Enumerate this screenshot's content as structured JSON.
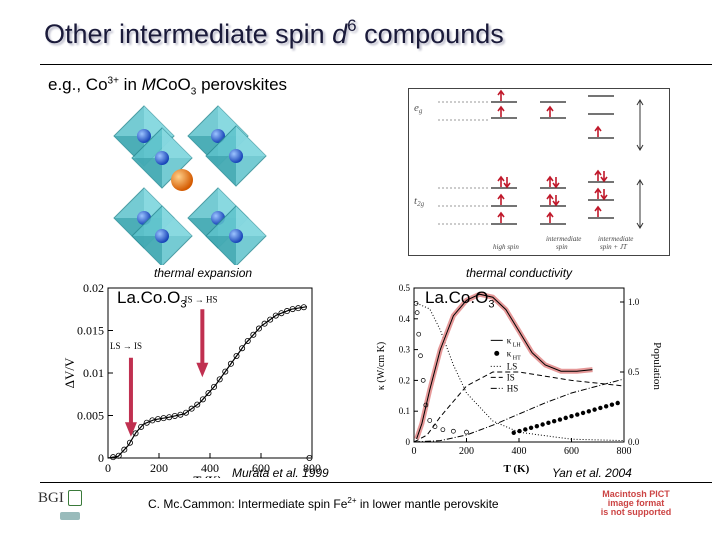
{
  "slide": {
    "title_pre": "Other intermediate spin ",
    "title_d": "d",
    "title_sup": "6",
    "title_post": " compounds",
    "subtitle_pre": "e.g., Co",
    "subtitle_sup": "3+",
    "subtitle_mid": " in ",
    "subtitle_m": "M",
    "subtitle_co": "CoO",
    "subtitle_sub": "3",
    "subtitle_post": " perovskites"
  },
  "energy_diagram": {
    "eg_label": "e",
    "eg_sub": "g",
    "t2g_label": "t",
    "t2g_sub": "2g",
    "col1": "high spin",
    "col2_l1": "intermediate",
    "col2_l2": "spin",
    "col3_l1": "intermediate",
    "col3_l2": "spin + JT"
  },
  "left_chart": {
    "caption": "thermal expansion",
    "material": "La.Co.O",
    "material_sub": "3",
    "ylabel": "ΔV/V",
    "xlabel": "T (K)",
    "yticks": [
      "0.02",
      "0.015",
      "0.01",
      "0.005",
      "0"
    ],
    "xticks": [
      "0",
      "200",
      "400",
      "600",
      "800"
    ],
    "ann_ls": "LS → IS",
    "ann_is": "IS → HS",
    "credit": "Murata et al. 1999"
  },
  "right_chart": {
    "caption": "thermal conductivity",
    "material": "La.Co.O",
    "material_sub": "3",
    "ylabel": "κ (W/cm K)",
    "y2label": "Population",
    "xlabel": "T (K)",
    "yticks": [
      "0.5",
      "0.4",
      "0.3",
      "0.2",
      "0.1",
      "0"
    ],
    "y2ticks": [
      "1.0",
      "0.5",
      "0.0"
    ],
    "xticks": [
      "0",
      "200",
      "400",
      "600",
      "800"
    ],
    "legend": [
      "κ",
      "κ",
      "LS",
      "IS",
      "HS"
    ],
    "legend_sub": [
      "LH",
      "HT"
    ],
    "credit": "Yan et al. 2004"
  },
  "footer": {
    "text_pre": "C. Mc.Cammon: Intermediate spin Fe",
    "text_sup": "2+",
    "text_post": " in lower mantle perovskite",
    "logo": "BGI",
    "stamp_l1": "Macintosh PICT",
    "stamp_l2": "image format",
    "stamp_l3": "is not supported"
  }
}
